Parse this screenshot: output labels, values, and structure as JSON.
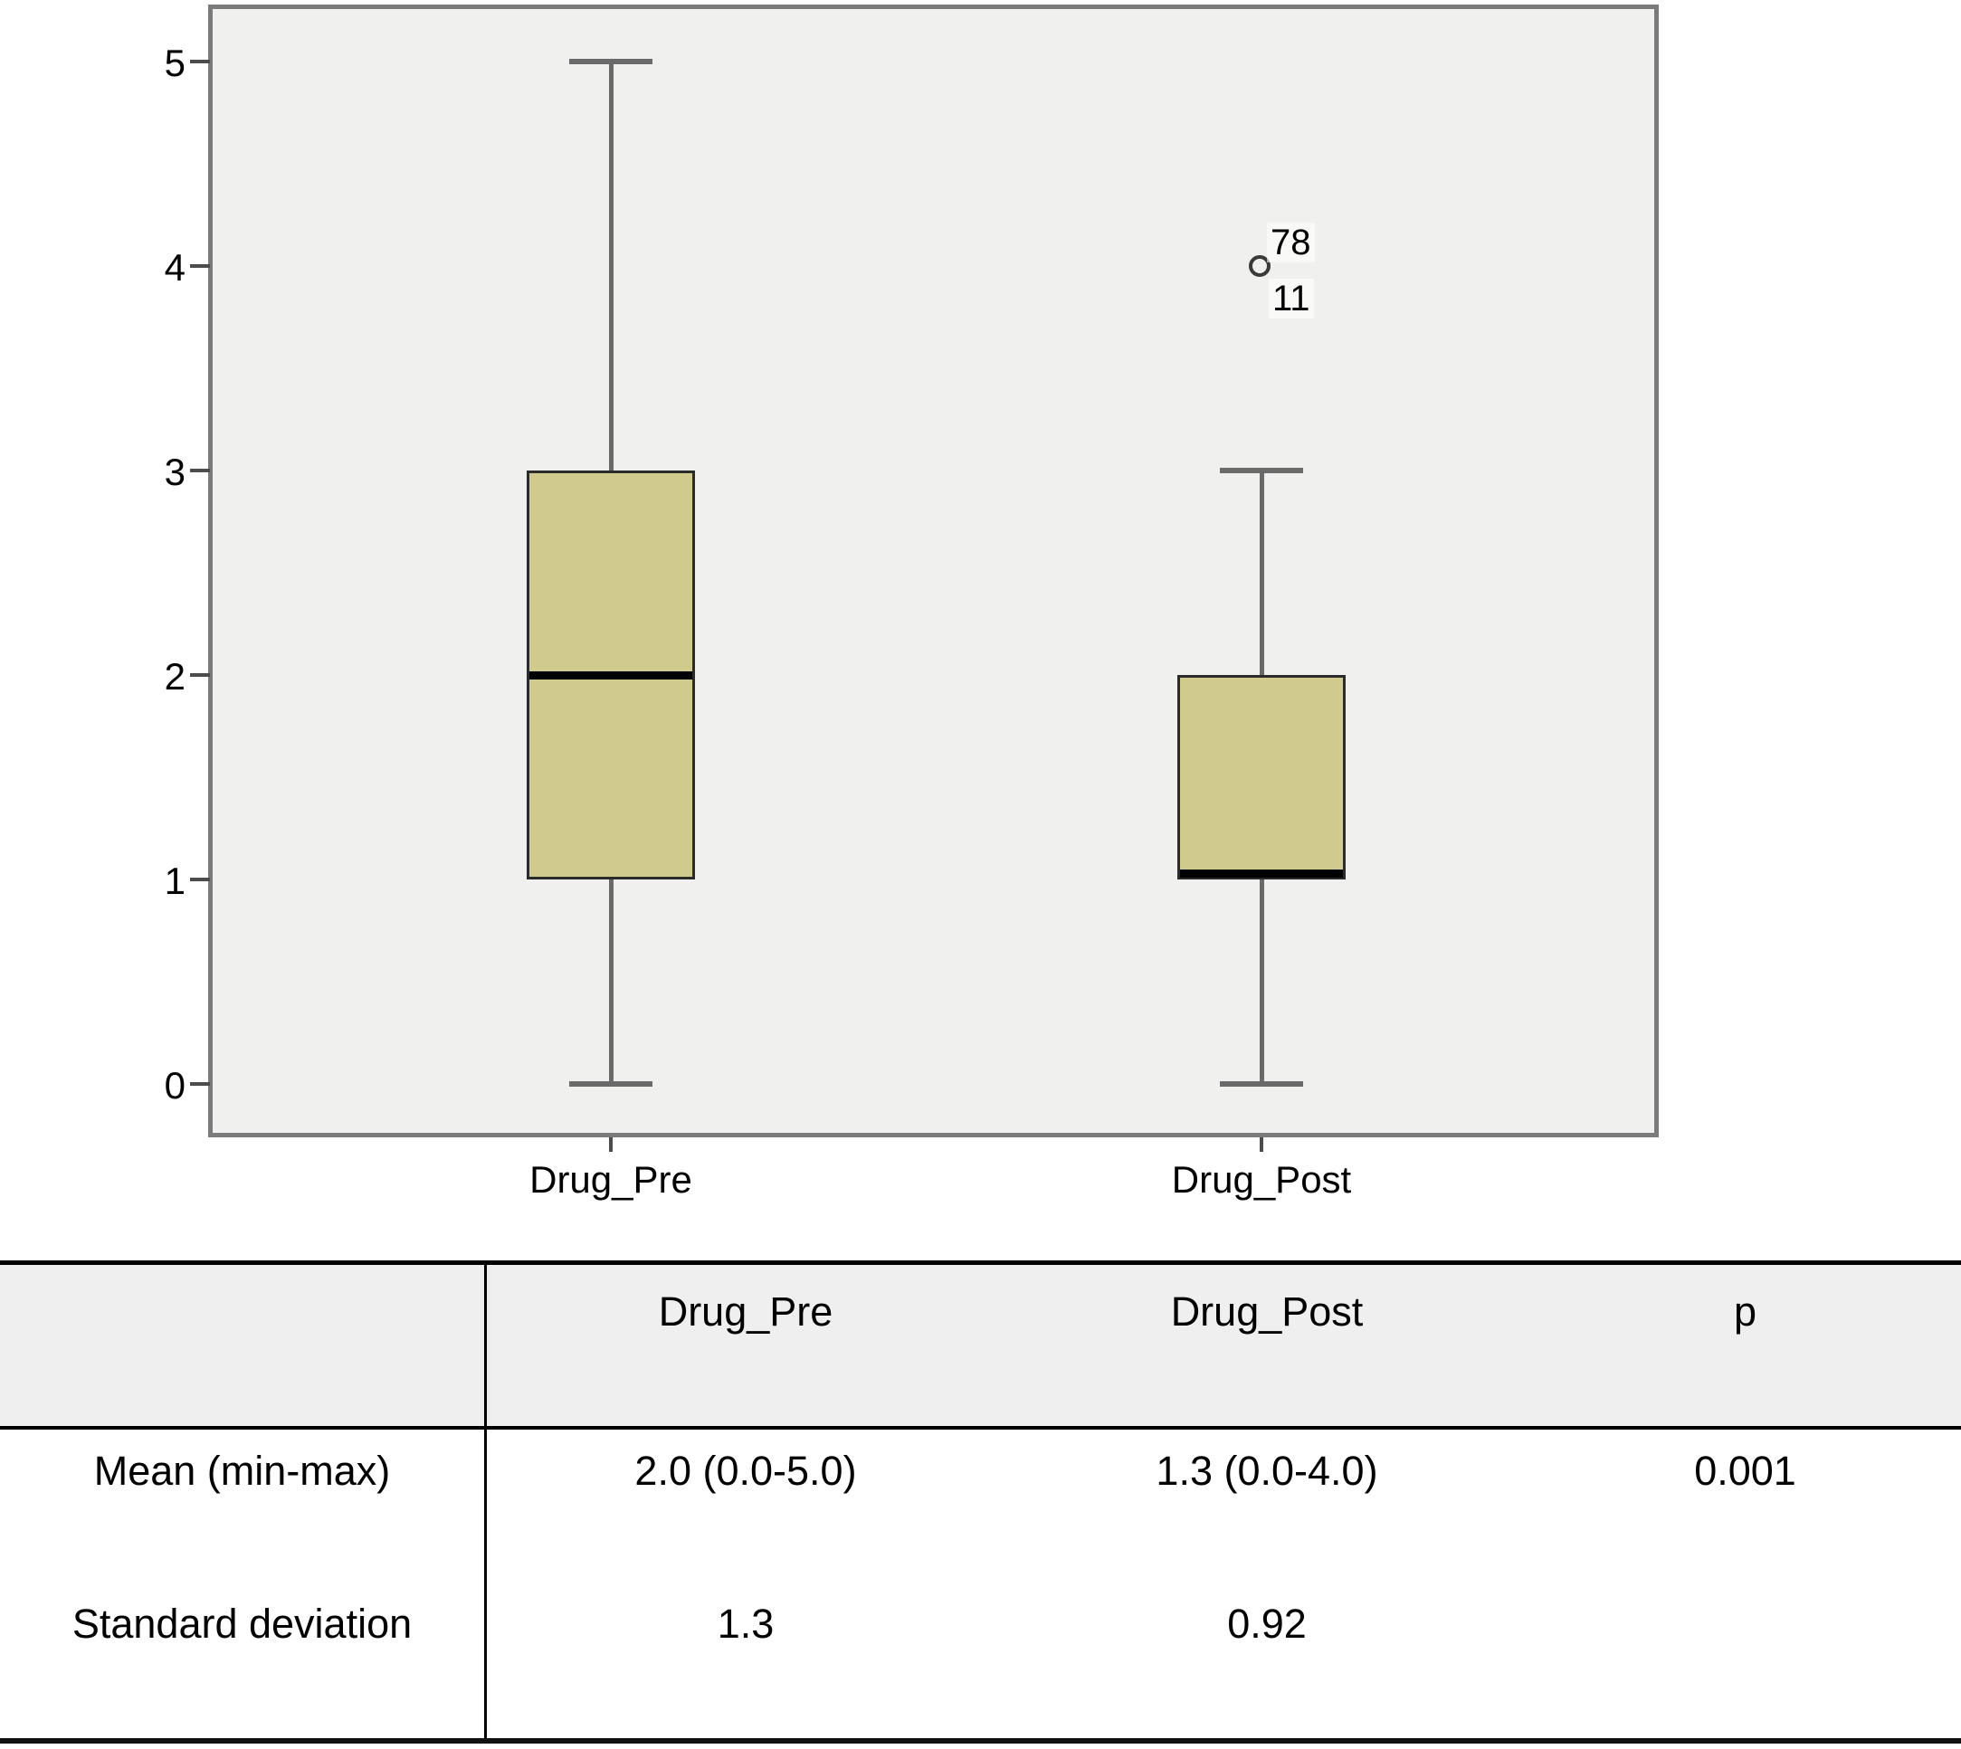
{
  "chart_data": {
    "type": "box",
    "title": "",
    "xlabel": "",
    "ylabel": "",
    "categories": [
      "Drug_Pre",
      "Drug_Post"
    ],
    "y_axis": {
      "ticks": [
        0,
        1,
        2,
        3,
        4,
        5
      ],
      "range": [
        0,
        5
      ],
      "grid": false
    },
    "series": [
      {
        "name": "Drug_Pre",
        "whisker_low": 0,
        "q1": 1,
        "median": 2,
        "q3": 3,
        "whisker_high": 5,
        "outliers": []
      },
      {
        "name": "Drug_Post",
        "whisker_low": 0,
        "q1": 1,
        "median": 1,
        "q3": 2,
        "whisker_high": 3,
        "outliers": [
          {
            "value": 4,
            "label_above": "78",
            "label_below": "11"
          }
        ]
      }
    ],
    "colors": {
      "box_fill": "#d0ca8c",
      "box_border": "#2b2b2b",
      "median": "#000000",
      "whisker": "#6a6a6a",
      "plot_bg": "#f0f0ee",
      "frame": "#7b7b7b"
    }
  },
  "table": {
    "headers": [
      "",
      "Drug_Pre",
      "Drug_Post",
      "p"
    ],
    "rows": [
      {
        "label": "Mean (min-max)",
        "values": [
          "2.0 (0.0-5.0)",
          "1.3 (0.0-4.0)",
          "0.001"
        ]
      },
      {
        "label": "Standard deviation",
        "values": [
          "1.3",
          "0.92",
          ""
        ]
      }
    ]
  }
}
